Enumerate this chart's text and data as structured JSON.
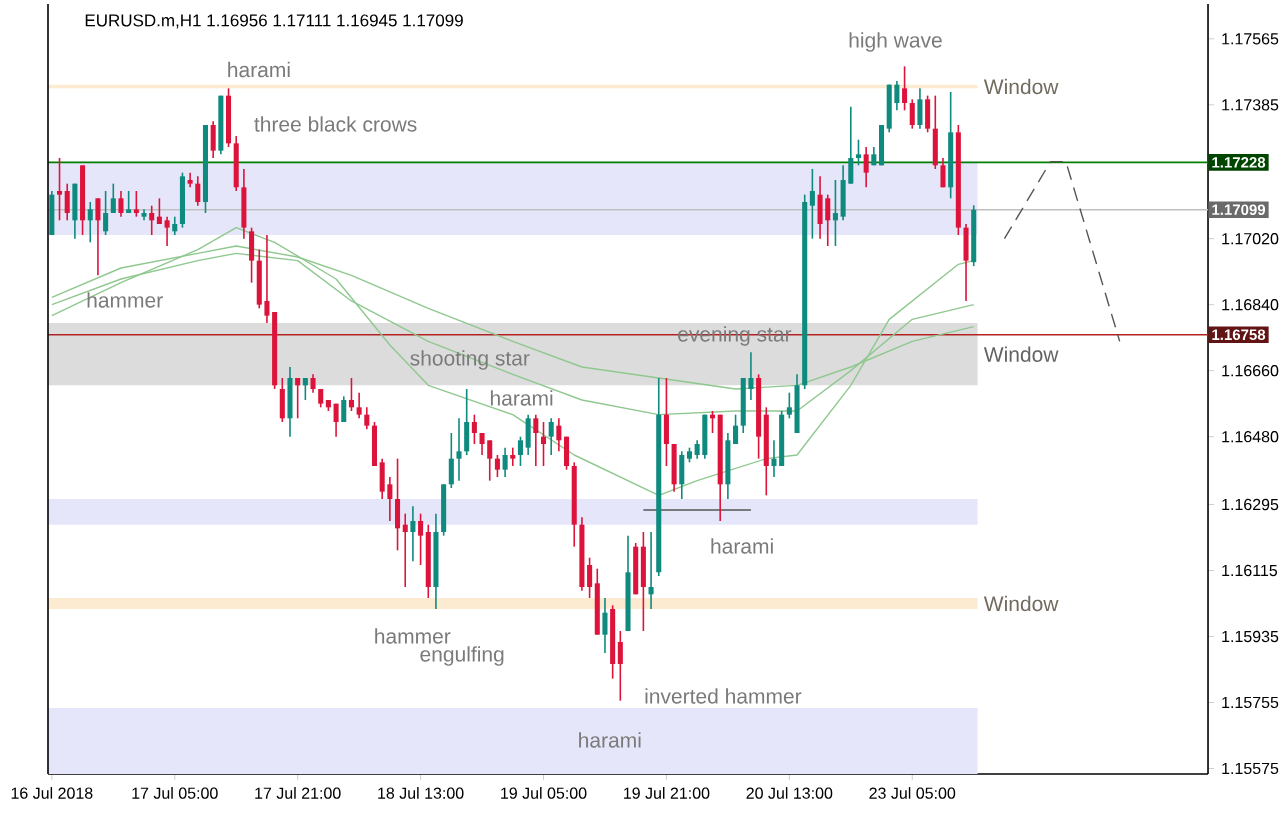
{
  "chart_data": {
    "type": "candlestick",
    "title": "EURUSD.m,H1  1.16956 1.17111 1.16945 1.17099",
    "categories": [
      "16 Jul 2018",
      null,
      null,
      null,
      null,
      null,
      null,
      null,
      null,
      null,
      null,
      null,
      null,
      null,
      null,
      null,
      "17 Jul 05:00",
      null,
      null,
      null,
      null,
      null,
      null,
      null,
      null,
      null,
      null,
      null,
      null,
      null,
      null,
      null,
      "17 Jul 21:00",
      null,
      null,
      null,
      null,
      null,
      null,
      null,
      null,
      null,
      null,
      null,
      null,
      null,
      null,
      null,
      "18 Jul 13:00",
      null,
      null,
      null,
      null,
      null,
      null,
      null,
      null,
      null,
      null,
      null,
      null,
      null,
      null,
      null,
      "19 Jul 05:00",
      null,
      null,
      null,
      null,
      null,
      null,
      null,
      null,
      null,
      null,
      null,
      null,
      null,
      null,
      null,
      "19 Jul 21:00",
      null,
      null,
      null,
      null,
      null,
      null,
      null,
      null,
      null,
      null,
      null,
      null,
      null,
      null,
      null,
      "20 Jul 13:00",
      null,
      null,
      null,
      null,
      null,
      null,
      null,
      null,
      null,
      null,
      null,
      null,
      null,
      null,
      null,
      "23 Jul 05:00",
      null,
      null,
      null,
      null,
      null,
      null,
      null,
      null,
      null,
      null,
      null,
      null,
      null,
      null,
      null,
      null,
      null,
      null,
      null,
      null,
      null,
      null,
      null,
      null,
      null,
      null,
      null,
      null,
      null,
      null,
      null,
      null,
      null,
      null,
      null,
      null,
      null,
      null
    ],
    "ohlc": [
      [
        1.1703,
        1.1715,
        1.1703,
        1.1714
      ],
      [
        1.1715,
        1.1724,
        1.1707,
        1.1714
      ],
      [
        1.1715,
        1.1717,
        1.1707,
        1.1709
      ],
      [
        1.1707,
        1.1717,
        1.1702,
        1.1717
      ],
      [
        1.1722,
        1.1722,
        1.1703,
        1.1707
      ],
      [
        1.1707,
        1.1712,
        1.1701,
        1.171
      ],
      [
        1.1713,
        1.1713,
        1.1692,
        1.1707
      ],
      [
        1.1704,
        1.1715,
        1.1703,
        1.1709
      ],
      [
        1.1709,
        1.1717,
        1.1709,
        1.1713
      ],
      [
        1.1713,
        1.1715,
        1.1708,
        1.1709
      ],
      [
        1.1709,
        1.1715,
        1.1709,
        1.171
      ],
      [
        1.171,
        1.1715,
        1.1708,
        1.1709
      ],
      [
        1.1708,
        1.171,
        1.1707,
        1.1709
      ],
      [
        1.1709,
        1.1711,
        1.1703,
        1.1707
      ],
      [
        1.1708,
        1.1713,
        1.1706,
        1.1706
      ],
      [
        1.1707,
        1.1708,
        1.17,
        1.1705
      ],
      [
        1.1704,
        1.1708,
        1.1703,
        1.1706
      ],
      [
        1.1706,
        1.172,
        1.1705,
        1.1719
      ],
      [
        1.1718,
        1.172,
        1.1716,
        1.1717
      ],
      [
        1.1717,
        1.1719,
        1.1711,
        1.1712
      ],
      [
        1.1712,
        1.1733,
        1.1709,
        1.1733
      ],
      [
        1.1733,
        1.1734,
        1.1724,
        1.1726
      ],
      [
        1.1726,
        1.1741,
        1.1725,
        1.1741
      ],
      [
        1.1741,
        1.1743,
        1.1727,
        1.1728
      ],
      [
        1.1728,
        1.173,
        1.1715,
        1.1716
      ],
      [
        1.1716,
        1.1721,
        1.1702,
        1.1705
      ],
      [
        1.1704,
        1.1705,
        1.169,
        1.1696
      ],
      [
        1.1696,
        1.1699,
        1.1683,
        1.1684
      ],
      [
        1.1685,
        1.1703,
        1.1679,
        1.1681
      ],
      [
        1.1682,
        1.1682,
        1.1661,
        1.1662
      ],
      [
        1.1661,
        1.1664,
        1.1652,
        1.1653
      ],
      [
        1.1653,
        1.1667,
        1.1648,
        1.1664
      ],
      [
        1.1664,
        1.1664,
        1.1653,
        1.1662
      ],
      [
        1.1662,
        1.1664,
        1.1658,
        1.1664
      ],
      [
        1.1664,
        1.1665,
        1.166,
        1.1661
      ],
      [
        1.1661,
        1.1661,
        1.1656,
        1.1657
      ],
      [
        1.1658,
        1.1658,
        1.1655,
        1.1656
      ],
      [
        1.1657,
        1.1657,
        1.1648,
        1.1652
      ],
      [
        1.1652,
        1.1659,
        1.1652,
        1.1658
      ],
      [
        1.1658,
        1.1664,
        1.1655,
        1.1656
      ],
      [
        1.1656,
        1.166,
        1.1653,
        1.1654
      ],
      [
        1.1654,
        1.1656,
        1.165,
        1.1651
      ],
      [
        1.1651,
        1.1652,
        1.164,
        1.164
      ],
      [
        1.1641,
        1.1642,
        1.1631,
        1.1633
      ],
      [
        1.1635,
        1.1637,
        1.1625,
        1.1631
      ],
      [
        1.1631,
        1.1642,
        1.1617,
        1.1623
      ],
      [
        1.1624,
        1.1627,
        1.1607,
        1.1622
      ],
      [
        1.1622,
        1.1629,
        1.1614,
        1.1625
      ],
      [
        1.1625,
        1.1627,
        1.1613,
        1.1621
      ],
      [
        1.1622,
        1.1624,
        1.1604,
        1.1607
      ],
      [
        1.1607,
        1.1627,
        1.1601,
        1.1622
      ],
      [
        1.1622,
        1.1635,
        1.1621,
        1.1635
      ],
      [
        1.1635,
        1.1649,
        1.1634,
        1.1642
      ],
      [
        1.1642,
        1.1653,
        1.1636,
        1.1644
      ],
      [
        1.1644,
        1.1661,
        1.1643,
        1.1652
      ],
      [
        1.1652,
        1.1654,
        1.1646,
        1.1649
      ],
      [
        1.1649,
        1.1649,
        1.1643,
        1.1646
      ],
      [
        1.1647,
        1.1647,
        1.1636,
        1.1642
      ],
      [
        1.1642,
        1.1643,
        1.1637,
        1.1639
      ],
      [
        1.1639,
        1.1645,
        1.1637,
        1.1643
      ],
      [
        1.1643,
        1.1645,
        1.164,
        1.1642
      ],
      [
        1.1643,
        1.1648,
        1.164,
        1.1647
      ],
      [
        1.1645,
        1.1654,
        1.1643,
        1.1653
      ],
      [
        1.1653,
        1.1654,
        1.164,
        1.1649
      ],
      [
        1.1648,
        1.1652,
        1.164,
        1.1646
      ],
      [
        1.1648,
        1.1653,
        1.1643,
        1.1652
      ],
      [
        1.1651,
        1.1653,
        1.1644,
        1.1647
      ],
      [
        1.1648,
        1.1648,
        1.1639,
        1.164
      ],
      [
        1.164,
        1.1641,
        1.1618,
        1.1624
      ],
      [
        1.1624,
        1.1626,
        1.1606,
        1.1607
      ],
      [
        1.1613,
        1.1615,
        1.1604,
        1.1607
      ],
      [
        1.1608,
        1.1612,
        1.1594,
        1.1594
      ],
      [
        1.1594,
        1.1604,
        1.1589,
        1.16
      ],
      [
        1.1601,
        1.1602,
        1.1582,
        1.1586
      ],
      [
        1.1592,
        1.1595,
        1.1576,
        1.1586
      ],
      [
        1.1595,
        1.1621,
        1.1595,
        1.1611
      ],
      [
        1.1618,
        1.1619,
        1.1605,
        1.1605
      ],
      [
        1.1618,
        1.1622,
        1.1595,
        1.1607
      ],
      [
        1.1605,
        1.1622,
        1.1601,
        1.1607
      ],
      [
        1.1611,
        1.1664,
        1.161,
        1.1654
      ],
      [
        1.1654,
        1.1664,
        1.164,
        1.1646
      ],
      [
        1.1646,
        1.1646,
        1.1633,
        1.1635
      ],
      [
        1.1635,
        1.1644,
        1.1631,
        1.1643
      ],
      [
        1.1642,
        1.1645,
        1.1641,
        1.1644
      ],
      [
        1.1643,
        1.1647,
        1.1642,
        1.1646
      ],
      [
        1.1643,
        1.1654,
        1.1642,
        1.1654
      ],
      [
        1.1654,
        1.1655,
        1.1649,
        1.1653
      ],
      [
        1.1654,
        1.1654,
        1.1625,
        1.1635
      ],
      [
        1.1635,
        1.1649,
        1.1631,
        1.1647
      ],
      [
        1.1646,
        1.1654,
        1.1646,
        1.1651
      ],
      [
        1.1651,
        1.1664,
        1.1649,
        1.1664
      ],
      [
        1.1661,
        1.1671,
        1.1658,
        1.1664
      ],
      [
        1.1664,
        1.1665,
        1.1642,
        1.1648
      ],
      [
        1.1654,
        1.1656,
        1.1632,
        1.164
      ],
      [
        1.164,
        1.1647,
        1.1637,
        1.1642
      ],
      [
        1.164,
        1.1655,
        1.164,
        1.1654
      ],
      [
        1.1654,
        1.166,
        1.1653,
        1.1656
      ],
      [
        1.1649,
        1.1665,
        1.1649,
        1.1662
      ],
      [
        1.1662,
        1.1714,
        1.1661,
        1.1712
      ],
      [
        1.1711,
        1.1721,
        1.1702,
        1.1715
      ],
      [
        1.1714,
        1.1719,
        1.1702,
        1.1706
      ],
      [
        1.1713,
        1.1714,
        1.17,
        1.1707
      ],
      [
        1.1707,
        1.1718,
        1.17,
        1.1709
      ],
      [
        1.1708,
        1.1722,
        1.1707,
        1.1718
      ],
      [
        1.1717,
        1.1738,
        1.1717,
        1.1724
      ],
      [
        1.1724,
        1.1729,
        1.1722,
        1.1725
      ],
      [
        1.1725,
        1.1727,
        1.1716,
        1.172
      ],
      [
        1.1722,
        1.1727,
        1.1722,
        1.1725
      ],
      [
        1.1722,
        1.1733,
        1.1722,
        1.1733
      ],
      [
        1.1732,
        1.1744,
        1.1731,
        1.1744
      ],
      [
        1.1739,
        1.1745,
        1.1737,
        1.1744
      ],
      [
        1.1743,
        1.1749,
        1.1737,
        1.1739
      ],
      [
        1.1739,
        1.174,
        1.1732,
        1.1733
      ],
      [
        1.1733,
        1.1743,
        1.1732,
        1.174
      ],
      [
        1.174,
        1.1741,
        1.1731,
        1.1732
      ],
      [
        1.1732,
        1.1741,
        1.1721,
        1.1722
      ],
      [
        1.1722,
        1.1724,
        1.1716,
        1.1716
      ],
      [
        1.1716,
        1.1742,
        1.1713,
        1.1731
      ],
      [
        1.1731,
        1.1733,
        1.1703,
        1.1705
      ],
      [
        1.1705,
        1.1706,
        1.1685,
        1.1696
      ],
      [
        1.16956,
        1.17111,
        1.16945,
        1.17099
      ],
      null,
      null,
      null,
      null,
      null,
      null,
      null,
      null,
      null,
      null,
      null,
      null,
      null,
      null,
      null,
      null,
      null,
      null,
      null,
      null,
      null,
      null,
      null,
      null,
      null,
      null,
      null,
      null,
      null,
      null
    ],
    "colors": [
      "#0e8a7e",
      "#dc143c",
      "#dc143c",
      "#0e8a7e",
      "#dc143c",
      "#0e8a7e",
      "#dc143c",
      "#0e8a7e",
      "#0e8a7e",
      "#dc143c",
      "#0e8a7e",
      "#dc143c",
      "#0e8a7e",
      "#dc143c",
      "#dc143c",
      "#dc143c",
      "#0e8a7e",
      "#0e8a7e",
      "#dc143c",
      "#dc143c",
      "#0e8a7e",
      "#dc143c",
      "#0e8a7e",
      "#dc143c",
      "#dc143c",
      "#dc143c",
      "#dc143c",
      "#dc143c",
      "#dc143c",
      "#dc143c",
      "#dc143c",
      "#0e8a7e",
      "#dc143c",
      "#0e8a7e",
      "#dc143c",
      "#dc143c",
      "#dc143c",
      "#dc143c",
      "#0e8a7e",
      "#dc143c",
      "#dc143c",
      "#dc143c",
      "#dc143c",
      "#dc143c",
      "#dc143c",
      "#dc143c",
      "#dc143c",
      "#0e8a7e",
      "#dc143c",
      "#dc143c",
      "#0e8a7e",
      "#0e8a7e",
      "#0e8a7e",
      "#0e8a7e",
      "#0e8a7e",
      "#dc143c",
      "#dc143c",
      "#dc143c",
      "#dc143c",
      "#0e8a7e",
      "#dc143c",
      "#0e8a7e",
      "#0e8a7e",
      "#dc143c",
      "#dc143c",
      "#0e8a7e",
      "#dc143c",
      "#dc143c",
      "#dc143c",
      "#dc143c",
      "#dc143c",
      "#dc143c",
      "#0e8a7e",
      "#dc143c",
      "#dc143c",
      "#0e8a7e",
      "#dc143c",
      "#dc143c",
      "#0e8a7e",
      "#0e8a7e",
      "#dc143c",
      "#dc143c",
      "#0e8a7e",
      "#0e8a7e",
      "#0e8a7e",
      "#0e8a7e",
      "#dc143c",
      "#dc143c",
      "#0e8a7e",
      "#0e8a7e",
      "#0e8a7e",
      "#0e8a7e",
      "#dc143c",
      "#dc143c",
      "#0e8a7e",
      "#0e8a7e",
      "#0e8a7e",
      "#0e8a7e",
      "#0e8a7e",
      "#0e8a7e",
      "#dc143c",
      "#dc143c",
      "#0e8a7e",
      "#0e8a7e",
      "#0e8a7e",
      "#0e8a7e",
      "#dc143c",
      "#0e8a7e",
      "#0e8a7e",
      "#0e8a7e",
      "#0e8a7e",
      "#dc143c",
      "#dc143c",
      "#0e8a7e",
      "#dc143c",
      "#dc143c",
      "#dc143c",
      "#0e8a7e",
      "#dc143c",
      "#dc143c",
      "#0e8a7e",
      null,
      null,
      null,
      null,
      null,
      null,
      null,
      null,
      null,
      null,
      null,
      null,
      null,
      null,
      null,
      null,
      null,
      null,
      null,
      null,
      null,
      null,
      null,
      null,
      null,
      null,
      null,
      null,
      null,
      null
    ],
    "ylim": [
      1.1556,
      1.1766
    ],
    "yticks": [
      {
        "value": 1.15575,
        "label": "1.15575"
      },
      {
        "value": 1.15755,
        "label": "1.15755"
      },
      {
        "value": 1.15935,
        "label": "1.15935"
      },
      {
        "value": 1.16115,
        "label": "1.16115"
      },
      {
        "value": 1.16295,
        "label": "1.16295"
      },
      {
        "value": 1.1648,
        "label": "1.16480"
      },
      {
        "value": 1.1666,
        "label": "1.16660"
      },
      {
        "value": 1.1684,
        "label": "1.16840"
      },
      {
        "value": 1.1702,
        "label": "1.17020"
      },
      {
        "value": 1.17385,
        "label": "1.17385"
      },
      {
        "value": 1.17565,
        "label": "1.17565"
      }
    ],
    "series": [
      {
        "type": "line",
        "color": "#8fc88f",
        "values": [
          1.1681,
          null,
          null,
          null,
          null,
          null,
          null,
          null,
          null,
          1.169,
          null,
          null,
          null,
          null,
          null,
          null,
          null,
          null,
          null,
          1.1699,
          null,
          null,
          null,
          null,
          1.1705,
          null,
          null,
          null,
          null,
          1.1701,
          null,
          null,
          null,
          null,
          null,
          null,
          null,
          1.1691,
          null,
          null,
          null,
          null,
          null,
          null,
          1.1673,
          null,
          null,
          null,
          null,
          1.1662,
          null,
          null,
          null,
          null,
          null,
          null,
          null,
          null,
          null,
          null,
          1.1654,
          null,
          null,
          null,
          null,
          null,
          null,
          null,
          1.1643,
          null,
          null,
          null,
          null,
          null,
          null,
          null,
          null,
          null,
          null,
          1.1632,
          null,
          null,
          null,
          null,
          1.1636,
          null,
          null,
          null,
          null,
          null,
          null,
          null,
          null,
          1.1642,
          null,
          null,
          null,
          1.1643,
          null,
          null,
          null,
          null,
          null,
          null,
          1.1662,
          null,
          null,
          null,
          null,
          1.168,
          null,
          null,
          null,
          null,
          null,
          null,
          null,
          null,
          1.1695,
          null,
          1.1696,
          null,
          null,
          null,
          null,
          null,
          null,
          null,
          null,
          null,
          null,
          null,
          null,
          null,
          null,
          null,
          null,
          null,
          null,
          null,
          null,
          null,
          null,
          null,
          null,
          null,
          null,
          null,
          null,
          null,
          null
        ]
      },
      {
        "type": "line",
        "color": "#8fc88f",
        "values": [
          1.1684,
          null,
          null,
          null,
          null,
          null,
          null,
          null,
          null,
          1.1691,
          null,
          null,
          null,
          null,
          null,
          null,
          null,
          null,
          null,
          1.1696,
          null,
          null,
          null,
          null,
          1.1698,
          null,
          null,
          null,
          null,
          null,
          null,
          null,
          1.1696,
          null,
          null,
          null,
          null,
          null,
          null,
          1.1685,
          null,
          null,
          null,
          null,
          null,
          null,
          null,
          null,
          null,
          1.1674,
          null,
          null,
          null,
          null,
          null,
          null,
          null,
          null,
          null,
          null,
          1.1665,
          null,
          null,
          null,
          null,
          null,
          null,
          null,
          null,
          1.1658,
          null,
          null,
          null,
          null,
          null,
          null,
          null,
          null,
          null,
          1.1654,
          null,
          null,
          null,
          null,
          null,
          null,
          null,
          null,
          null,
          1.1655,
          null,
          null,
          null,
          null,
          null,
          null,
          null,
          1.1655,
          null,
          null,
          null,
          null,
          null,
          null,
          1.1666,
          null,
          null,
          null,
          null,
          null,
          null,
          null,
          1.168,
          null,
          null,
          null,
          null,
          null,
          null,
          null,
          1.1684,
          null,
          null,
          null,
          null,
          null,
          null,
          null,
          null,
          null,
          null,
          null,
          null,
          null,
          null,
          null,
          null,
          null,
          null,
          null,
          null,
          null,
          null,
          null,
          null,
          null,
          null,
          null,
          null,
          null,
          null
        ]
      },
      {
        "type": "line",
        "color": "#8fc88f",
        "values": [
          1.1686,
          null,
          null,
          null,
          null,
          null,
          null,
          null,
          null,
          1.1694,
          null,
          null,
          null,
          null,
          null,
          null,
          null,
          null,
          null,
          1.1698,
          null,
          null,
          null,
          null,
          1.17,
          null,
          null,
          null,
          null,
          null,
          null,
          null,
          1.1697,
          null,
          null,
          null,
          null,
          null,
          null,
          1.1692,
          null,
          null,
          null,
          null,
          null,
          null,
          null,
          null,
          null,
          1.1683,
          null,
          null,
          null,
          null,
          null,
          null,
          null,
          null,
          null,
          null,
          1.1674,
          null,
          null,
          null,
          null,
          null,
          null,
          null,
          null,
          1.1667,
          null,
          null,
          null,
          null,
          null,
          null,
          null,
          null,
          null,
          1.1664,
          null,
          null,
          null,
          null,
          null,
          null,
          null,
          null,
          null,
          1.1661,
          null,
          null,
          null,
          null,
          null,
          null,
          null,
          1.1662,
          null,
          null,
          null,
          null,
          null,
          null,
          1.1667,
          null,
          null,
          null,
          null,
          null,
          null,
          null,
          1.1674,
          null,
          null,
          null,
          null,
          null,
          null,
          null,
          1.1678,
          null,
          null,
          null,
          null,
          null,
          null,
          null,
          null,
          null,
          null,
          null,
          null,
          null,
          null,
          null,
          null,
          null,
          null,
          null,
          null,
          null,
          null,
          null,
          null,
          null,
          null,
          null,
          null,
          null,
          null
        ]
      },
      {
        "type": "line",
        "color": "#555555",
        "values": [
          null,
          null,
          null,
          null,
          null,
          null,
          null,
          null,
          null,
          null,
          null,
          null,
          null,
          null,
          null,
          null,
          null,
          null,
          null,
          null,
          null,
          null,
          null,
          null,
          null,
          null,
          null,
          null,
          null,
          null,
          null,
          null,
          null,
          null,
          null,
          null,
          null,
          null,
          null,
          null,
          null,
          null,
          null,
          null,
          null,
          null,
          null,
          null,
          null,
          null,
          null,
          null,
          null,
          null,
          null,
          null,
          null,
          null,
          null,
          null,
          null,
          null,
          null,
          null,
          null,
          null,
          null,
          null,
          null,
          null,
          null,
          null,
          null,
          null,
          null,
          null,
          null,
          1.1628,
          null,
          null,
          null,
          null,
          null,
          null,
          null,
          null,
          null,
          null,
          null,
          null,
          null,
          1.1628,
          null,
          null,
          null,
          null,
          null,
          null,
          null,
          null,
          null,
          null,
          null,
          null,
          null,
          null,
          null,
          null,
          null,
          null,
          null,
          null,
          null,
          null,
          null,
          null,
          null,
          null,
          null,
          null,
          null,
          null,
          null,
          null,
          null,
          null,
          null,
          null,
          null,
          null,
          null,
          null,
          null,
          null,
          null,
          null,
          null,
          null,
          null,
          null,
          null,
          null,
          null,
          null,
          null,
          null,
          null,
          null,
          null,
          null,
          null
        ]
      },
      {
        "type": "line",
        "color": "#555555",
        "line_style": "dashed",
        "values": [
          null,
          null,
          null,
          null,
          null,
          null,
          null,
          null,
          null,
          null,
          null,
          null,
          null,
          null,
          null,
          null,
          null,
          null,
          null,
          null,
          null,
          null,
          null,
          null,
          null,
          null,
          null,
          null,
          null,
          null,
          null,
          null,
          null,
          null,
          null,
          null,
          null,
          null,
          null,
          null,
          null,
          null,
          null,
          null,
          null,
          null,
          null,
          null,
          null,
          null,
          null,
          null,
          null,
          null,
          null,
          null,
          null,
          null,
          null,
          null,
          null,
          null,
          null,
          null,
          null,
          null,
          null,
          null,
          null,
          null,
          null,
          null,
          null,
          null,
          null,
          null,
          null,
          null,
          null,
          null,
          null,
          null,
          null,
          null,
          null,
          null,
          null,
          null,
          null,
          null,
          null,
          null,
          null,
          null,
          null,
          null,
          null,
          null,
          null,
          null,
          null,
          null,
          null,
          null,
          null,
          null,
          null,
          null,
          null,
          null,
          null,
          null,
          null,
          null,
          null,
          null,
          null,
          null,
          null,
          null,
          null,
          null,
          null,
          null,
          1.1702,
          null,
          null,
          null,
          null,
          null,
          1.1723,
          null,
          1.1723,
          null,
          null,
          null,
          null,
          null,
          null,
          1.1674,
          null,
          null,
          null,
          null,
          null,
          null,
          null,
          null,
          null,
          null,
          null
        ]
      }
    ],
    "bands": [
      {
        "axis": "y",
        "from": 1.1743,
        "to": 1.1744,
        "label": "Window",
        "color": "#fcebd0"
      },
      {
        "axis": "y",
        "from": 1.1703,
        "to": 1.1723,
        "color": "#e6e6fa"
      },
      {
        "axis": "y",
        "from": 1.1662,
        "to": 1.1679,
        "label": "Window",
        "color": "#dcdcdc"
      },
      {
        "axis": "y",
        "from": 1.1624,
        "to": 1.1631,
        "color": "#e6e6fa"
      },
      {
        "axis": "y",
        "from": 1.1601,
        "to": 1.1604,
        "label": "Window",
        "color": "#fcebd0"
      },
      {
        "axis": "y",
        "from": 1.1556,
        "to": 1.1574,
        "color": "#e6e6fa"
      }
    ],
    "ref_lines": [
      {
        "axis": "y",
        "value": 1.17228,
        "label": "1.17228",
        "color": "#008000"
      },
      {
        "axis": "y",
        "value": 1.17099,
        "label": "1.17099",
        "color": "#c0c0c0"
      },
      {
        "axis": "y",
        "value": 1.16758,
        "label": "1.16758",
        "color": "#b22222"
      }
    ],
    "annotations": [
      {
        "text": "harami",
        "y": 1.1741
      },
      "three black crows",
      "hammer",
      "shooting star",
      "harami",
      "evening star",
      "high wave",
      "hammer",
      "engulfing",
      "inverted hammer",
      "harami",
      "harami"
    ]
  }
}
